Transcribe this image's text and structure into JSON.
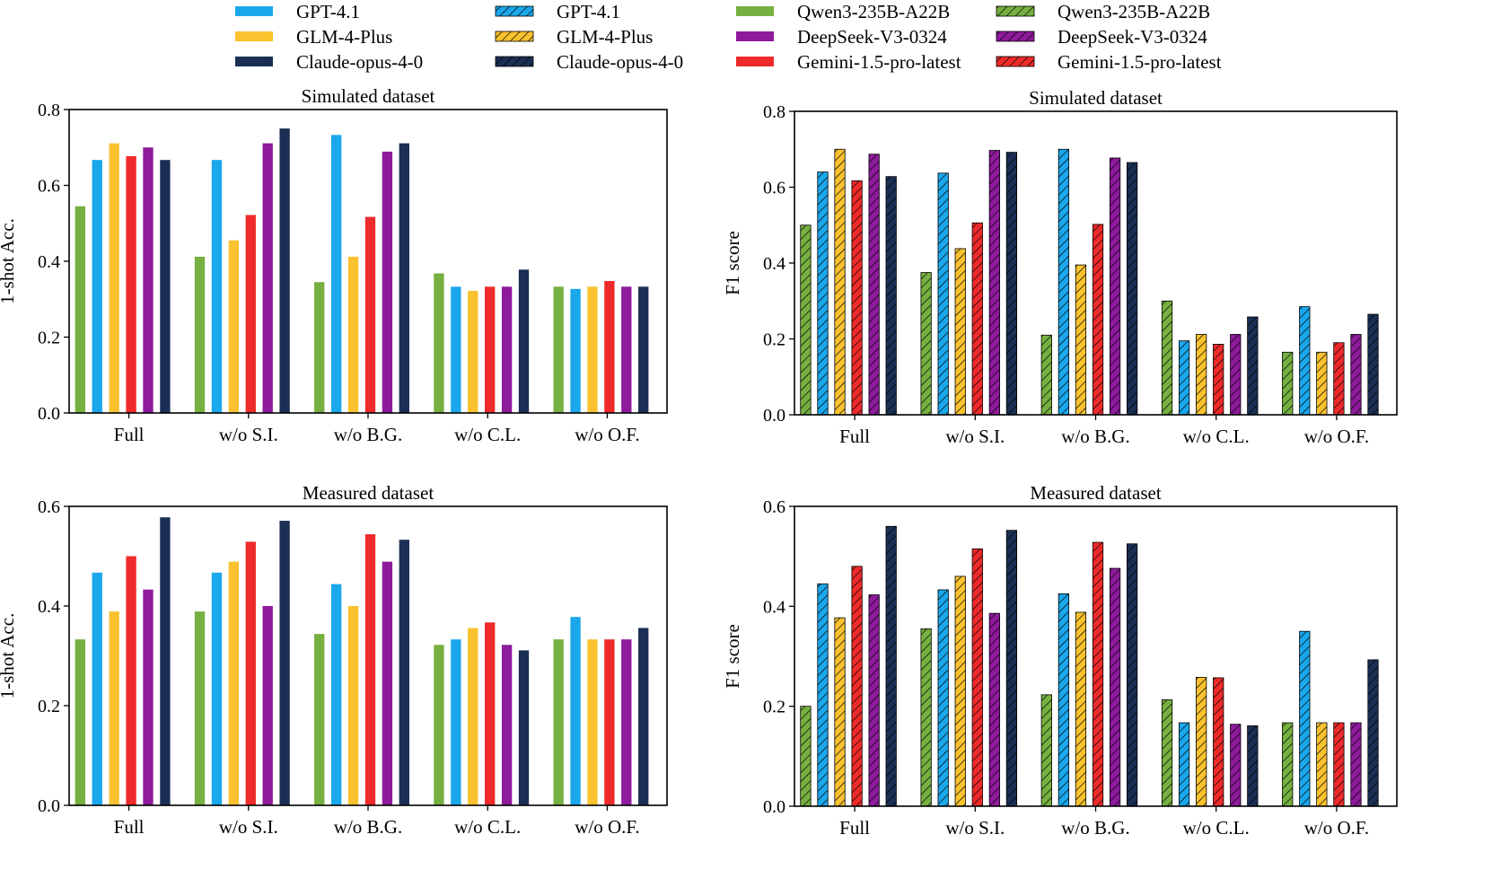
{
  "legend": {
    "solid": [
      {
        "name": "GPT-4.1",
        "color": "#1aa7ec"
      },
      {
        "name": "GLM-4-Plus",
        "color": "#f9c22e"
      },
      {
        "name": "Claude-opus-4-0",
        "color": "#1b2f55"
      },
      {
        "name": "Qwen3-235B-A22B",
        "color": "#76b041"
      },
      {
        "name": "DeepSeek-V3-0324",
        "color": "#8e1a9c"
      },
      {
        "name": "Gemini-1.5-pro-latest",
        "color": "#ee2a2a"
      }
    ],
    "hatched": [
      {
        "name": "GPT-4.1",
        "color": "#1aa7ec"
      },
      {
        "name": "GLM-4-Plus",
        "color": "#f9c22e"
      },
      {
        "name": "Claude-opus-4-0",
        "color": "#1b2f55"
      },
      {
        "name": "Qwen3-235B-A22B",
        "color": "#76b041"
      },
      {
        "name": "DeepSeek-V3-0324",
        "color": "#8e1a9c"
      },
      {
        "name": "Gemini-1.5-pro-latest",
        "color": "#ee2a2a"
      }
    ]
  },
  "chart_data": [
    {
      "type": "bar",
      "title": "Simulated dataset",
      "ylabel": "1-shot Acc.",
      "xlabel": "",
      "ylim": [
        0,
        0.8
      ],
      "yticks": [
        "0.0",
        "0.2",
        "0.4",
        "0.6",
        "0.8"
      ],
      "hatched": false,
      "categories": [
        "Full",
        "w/o S.I.",
        "w/o B.G.",
        "w/o C.L.",
        "w/o O.F."
      ],
      "series": [
        {
          "name": "Qwen3-235B-A22B",
          "color": "#76b041",
          "values": [
            0.545,
            0.412,
            0.345,
            0.368,
            0.333
          ]
        },
        {
          "name": "GPT-4.1",
          "color": "#1aa7ec",
          "values": [
            0.667,
            0.667,
            0.733,
            0.333,
            0.327
          ]
        },
        {
          "name": "GLM-4-Plus",
          "color": "#f9c22e",
          "values": [
            0.711,
            0.455,
            0.412,
            0.322,
            0.333
          ]
        },
        {
          "name": "Gemini-1.5-pro-latest",
          "color": "#ee2a2a",
          "values": [
            0.677,
            0.522,
            0.517,
            0.333,
            0.348
          ]
        },
        {
          "name": "DeepSeek-V3-0324",
          "color": "#8e1a9c",
          "values": [
            0.7,
            0.711,
            0.689,
            0.333,
            0.333
          ]
        },
        {
          "name": "Claude-opus-4-0",
          "color": "#1b2f55",
          "values": [
            0.667,
            0.75,
            0.711,
            0.378,
            0.333
          ]
        }
      ]
    },
    {
      "type": "bar",
      "title": "Simulated dataset",
      "ylabel": "F1 score",
      "xlabel": "",
      "ylim": [
        0,
        0.8
      ],
      "yticks": [
        "0.0",
        "0.2",
        "0.4",
        "0.6",
        "0.8"
      ],
      "hatched": true,
      "categories": [
        "Full",
        "w/o S.I.",
        "w/o B.G.",
        "w/o C.L.",
        "w/o O.F."
      ],
      "series": [
        {
          "name": "Qwen3-235B-A22B",
          "color": "#76b041",
          "values": [
            0.5,
            0.375,
            0.21,
            0.3,
            0.165
          ]
        },
        {
          "name": "GPT-4.1",
          "color": "#1aa7ec",
          "values": [
            0.64,
            0.637,
            0.7,
            0.195,
            0.285
          ]
        },
        {
          "name": "GLM-4-Plus",
          "color": "#f9c22e",
          "values": [
            0.7,
            0.438,
            0.395,
            0.212,
            0.165
          ]
        },
        {
          "name": "Gemini-1.5-pro-latest",
          "color": "#ee2a2a",
          "values": [
            0.617,
            0.506,
            0.502,
            0.186,
            0.19
          ]
        },
        {
          "name": "DeepSeek-V3-0324",
          "color": "#8e1a9c",
          "values": [
            0.687,
            0.697,
            0.677,
            0.212,
            0.212
          ]
        },
        {
          "name": "Claude-opus-4-0",
          "color": "#1b2f55",
          "values": [
            0.628,
            0.692,
            0.665,
            0.258,
            0.265
          ]
        }
      ]
    },
    {
      "type": "bar",
      "title": "Measured dataset",
      "ylabel": "1-shot Acc.",
      "xlabel": "",
      "ylim": [
        0,
        0.6
      ],
      "yticks": [
        "0.0",
        "0.2",
        "0.4",
        "0.6"
      ],
      "hatched": false,
      "categories": [
        "Full",
        "w/o S.I.",
        "w/o B.G.",
        "w/o C.L.",
        "w/o O.F."
      ],
      "series": [
        {
          "name": "Qwen3-235B-A22B",
          "color": "#76b041",
          "values": [
            0.333,
            0.389,
            0.344,
            0.322,
            0.333
          ]
        },
        {
          "name": "GPT-4.1",
          "color": "#1aa7ec",
          "values": [
            0.467,
            0.467,
            0.444,
            0.333,
            0.378
          ]
        },
        {
          "name": "GLM-4-Plus",
          "color": "#f9c22e",
          "values": [
            0.389,
            0.489,
            0.4,
            0.356,
            0.333
          ]
        },
        {
          "name": "Gemini-1.5-pro-latest",
          "color": "#ee2a2a",
          "values": [
            0.5,
            0.529,
            0.544,
            0.367,
            0.333
          ]
        },
        {
          "name": "DeepSeek-V3-0324",
          "color": "#8e1a9c",
          "values": [
            0.433,
            0.4,
            0.489,
            0.322,
            0.333
          ]
        },
        {
          "name": "Claude-opus-4-0",
          "color": "#1b2f55",
          "values": [
            0.578,
            0.571,
            0.533,
            0.311,
            0.356
          ]
        }
      ]
    },
    {
      "type": "bar",
      "title": "Measured dataset",
      "ylabel": "F1 score",
      "xlabel": "",
      "ylim": [
        0,
        0.6
      ],
      "yticks": [
        "0.0",
        "0.2",
        "0.4",
        "0.6"
      ],
      "hatched": true,
      "categories": [
        "Full",
        "w/o S.I.",
        "w/o B.G.",
        "w/o C.L.",
        "w/o O.F."
      ],
      "series": [
        {
          "name": "Qwen3-235B-A22B",
          "color": "#76b041",
          "values": [
            0.2,
            0.355,
            0.223,
            0.213,
            0.167
          ]
        },
        {
          "name": "GPT-4.1",
          "color": "#1aa7ec",
          "values": [
            0.445,
            0.433,
            0.425,
            0.167,
            0.35
          ]
        },
        {
          "name": "GLM-4-Plus",
          "color": "#f9c22e",
          "values": [
            0.377,
            0.46,
            0.388,
            0.258,
            0.167
          ]
        },
        {
          "name": "Gemini-1.5-pro-latest",
          "color": "#ee2a2a",
          "values": [
            0.48,
            0.515,
            0.528,
            0.257,
            0.167
          ]
        },
        {
          "name": "DeepSeek-V3-0324",
          "color": "#8e1a9c",
          "values": [
            0.423,
            0.386,
            0.476,
            0.164,
            0.167
          ]
        },
        {
          "name": "Claude-opus-4-0",
          "color": "#1b2f55",
          "values": [
            0.56,
            0.552,
            0.525,
            0.161,
            0.293
          ]
        }
      ]
    }
  ]
}
